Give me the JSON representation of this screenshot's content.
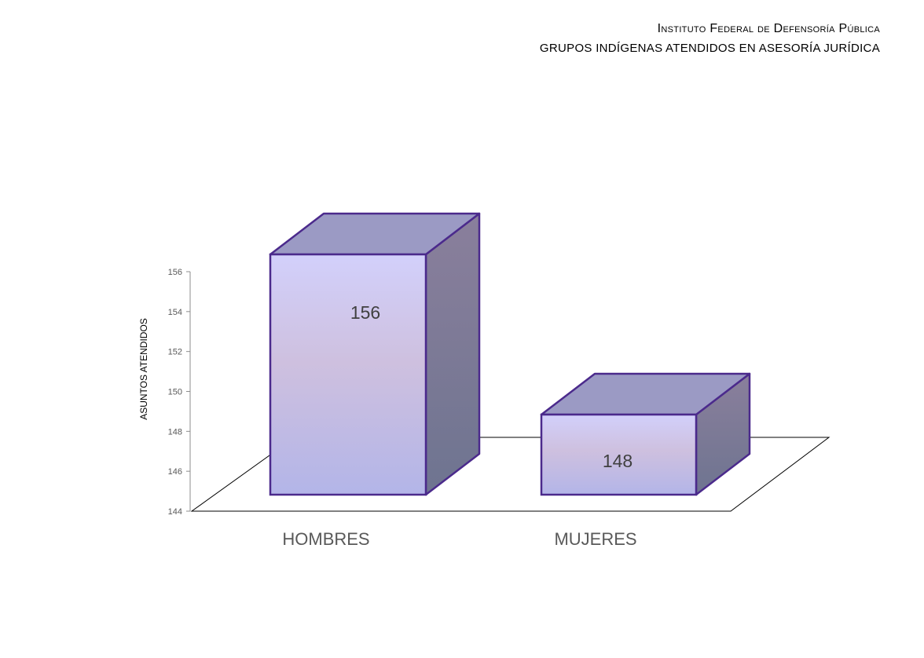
{
  "header": {
    "title": "Instituto Federal de Defensoría Pública",
    "subtitle": "GRUPOS INDÍGENAS ATENDIDOS EN ASESORÍA JURÍDICA"
  },
  "chart_data": {
    "type": "bar",
    "title": "",
    "xlabel": "",
    "ylabel": "ASUNTOS ATENDIDOS",
    "categories": [
      "HOMBRES",
      "MUJERES"
    ],
    "values": [
      156,
      148
    ],
    "ylim": [
      144,
      156
    ],
    "yticks": [
      "144",
      "146",
      "148",
      "150",
      "152",
      "154",
      "156"
    ],
    "data_labels": [
      "156",
      "148"
    ],
    "grid": false,
    "legend": "none",
    "colors": {
      "bar_front_top": "#d2d0fb",
      "bar_front_mid": "#cec0df",
      "bar_front_bottom": "#b3b5e8",
      "bar_top": "#9b9ac4",
      "bar_side_top": "#8a7f9c",
      "bar_side_bottom": "#6e7490",
      "bar_outline": "#4b2a8c"
    }
  }
}
